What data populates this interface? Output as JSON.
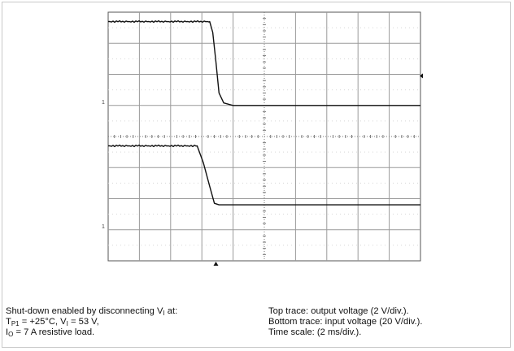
{
  "chart_data": {
    "type": "line",
    "grid": true,
    "divisions": {
      "x": 10,
      "y": 8
    },
    "x_scale_ms_per_div": 2,
    "channel_marker_label": "1",
    "series": [
      {
        "name": "output voltage",
        "v_per_div": 2,
        "x_div": [
          0,
          3.25,
          3.35,
          3.45,
          3.55,
          3.7,
          4.0,
          10
        ],
        "y_div": [
          7.7,
          7.7,
          7.35,
          6.4,
          5.4,
          5.08,
          5.0,
          5.0
        ]
      },
      {
        "name": "input voltage",
        "v_per_div": 20,
        "x_div": [
          0,
          2.85,
          3.05,
          3.25,
          3.4,
          3.55,
          10
        ],
        "y_div": [
          3.7,
          3.7,
          3.15,
          2.4,
          1.85,
          1.8,
          1.8
        ]
      }
    ]
  },
  "caption": {
    "left_line1": {
      "pre": "Shut-down enabled by disconnecting V",
      "sub": "I",
      "post": " at:"
    },
    "left_line2": {
      "a_pre": "T",
      "a_sub": "P1",
      "a_post": " = +25°C, V",
      "b_sub": "I",
      "b_post": " = 53 V,"
    },
    "left_line3": {
      "pre": "I",
      "sub": "O",
      "post": " = 7 A resistive load."
    },
    "right_line1": "Top trace: output voltage (2 V/div.).",
    "right_line2": "Bottom trace: input voltage (20 V/div.).",
    "right_line3": "Time scale: (2 ms/div.)."
  }
}
